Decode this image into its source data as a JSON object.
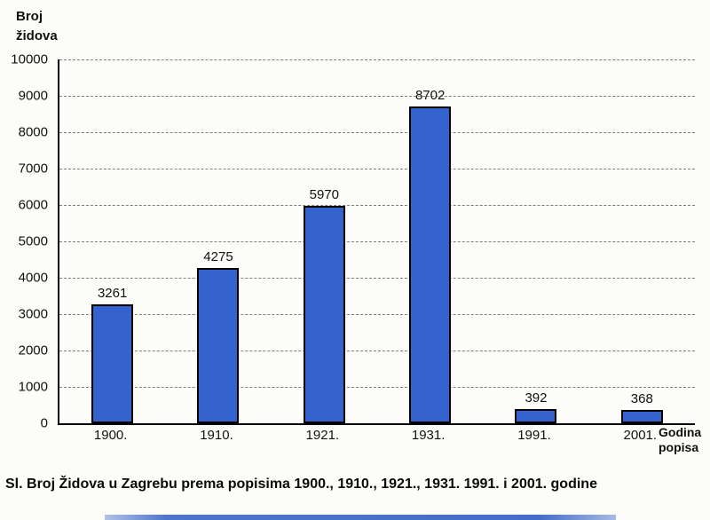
{
  "chart_data": {
    "type": "bar",
    "categories": [
      "1900.",
      "1910.",
      "1921.",
      "1931.",
      "1991.",
      "2001."
    ],
    "values": [
      3261,
      4275,
      5970,
      8702,
      392,
      368
    ],
    "title": "",
    "xlabel": "Godina popisa",
    "ylabel": "Broj židova",
    "ylim": [
      0,
      10000
    ],
    "ytick_step": 1000,
    "grid": "horizontal-dashed",
    "legend": "none",
    "bar_color": "#3463cd",
    "bar_border_color": "#000000"
  },
  "axis": {
    "y_title_line1": "Broj",
    "y_title_line2": "židova",
    "x_title_line1": "Godina",
    "x_title_line2": "popisa"
  },
  "caption": "Sl. Broj Židova u Zagrebu prema popisima 1900., 1910., 1921., 1931. 1991. i 2001. godine"
}
